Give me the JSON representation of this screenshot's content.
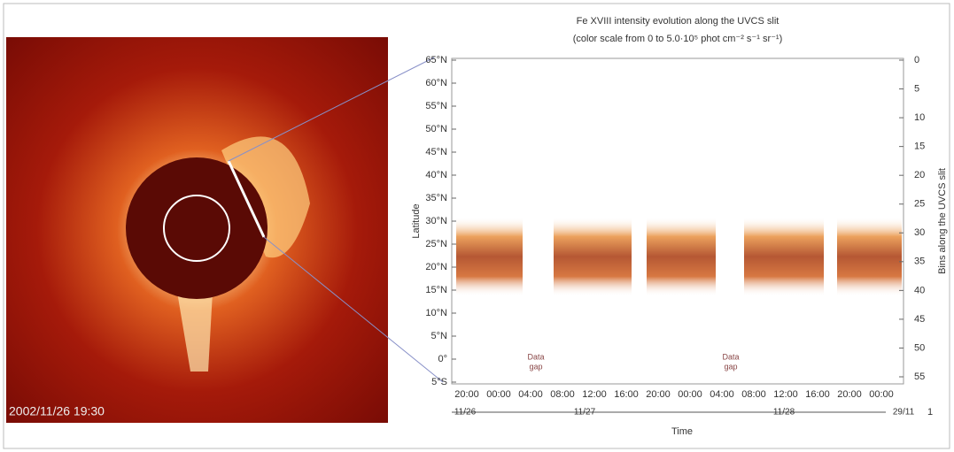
{
  "image": {
    "timestamp": "2002/11/26 19:30"
  },
  "plot": {
    "title": [
      "Fe XVIII intensity evolution along the UVCS slit",
      "(color scale from 0 to 5.0·10⁵ phot cm⁻² s⁻¹ sr⁻¹)"
    ],
    "y_label": "Latitude",
    "y2_label": "Bins along the UVCS slit",
    "x_label": "Time",
    "latitude_ticks": [
      "65°N",
      "60°N",
      "55°N",
      "50°N",
      "45°N",
      "40°N",
      "35°N",
      "30°N",
      "25°N",
      "20°N",
      "15°N",
      "10°N",
      "5°N",
      "0°",
      "5°S"
    ],
    "bin_ticks": [
      "0",
      "5",
      "10",
      "15",
      "20",
      "25",
      "30",
      "35",
      "40",
      "45",
      "50",
      "55"
    ],
    "time_ticks": [
      "20:00",
      "00:00",
      "04:00",
      "08:00",
      "12:00",
      "16:00",
      "20:00",
      "00:00",
      "04:00",
      "08:00",
      "12:00",
      "16:00",
      "20:00",
      "00:00"
    ],
    "date_labels": [
      "11/26",
      "11/27",
      "11/28",
      "29/11"
    ],
    "axis_end_label": "1",
    "gaps": [
      [
        "Data",
        "gap"
      ],
      [
        "Data",
        "gap"
      ]
    ]
  }
}
